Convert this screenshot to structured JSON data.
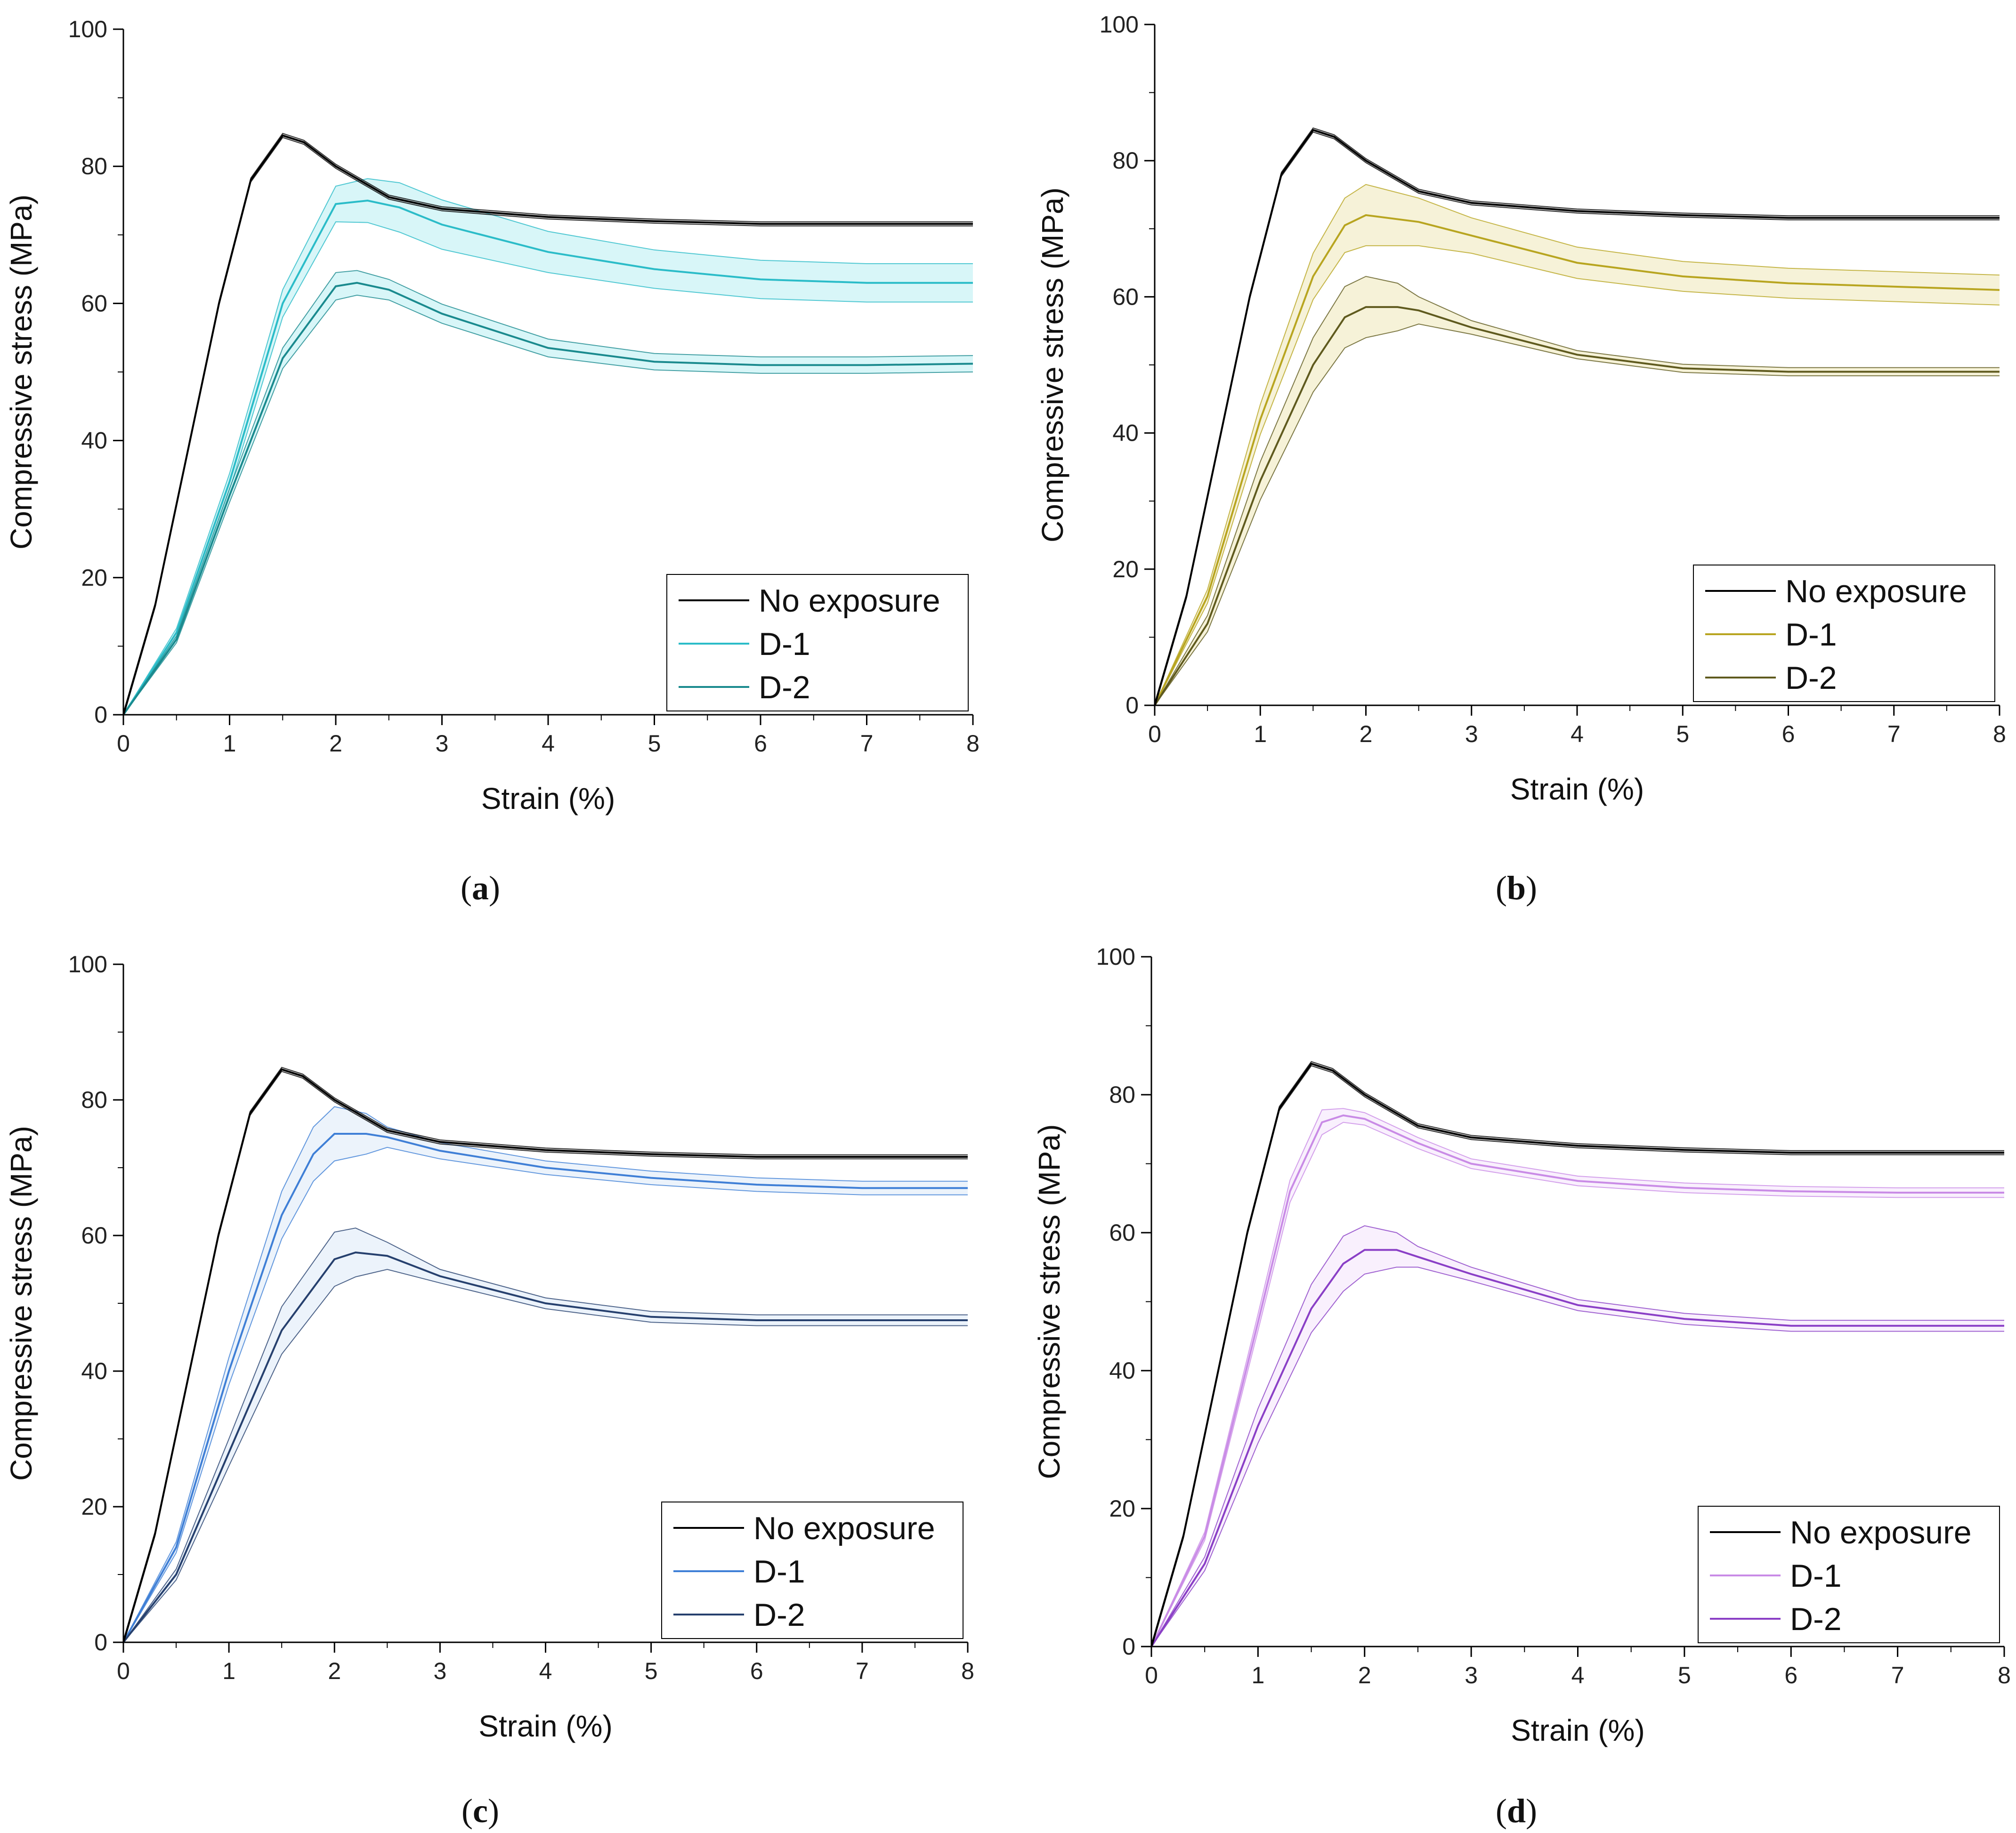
{
  "figure": {
    "panels": [
      {
        "id": "a",
        "caption_open": "(",
        "caption_letter": "a",
        "caption_close": ")"
      },
      {
        "id": "b",
        "caption_open": "(",
        "caption_letter": "b",
        "caption_close": ")"
      },
      {
        "id": "c",
        "caption_open": "(",
        "caption_letter": "c",
        "caption_close": ")"
      },
      {
        "id": "d",
        "caption_open": "(",
        "caption_letter": "d",
        "caption_close": ")"
      }
    ]
  },
  "chart_data": [
    {
      "panel": "a",
      "type": "line",
      "title": "",
      "xlabel": "Strain (%)",
      "ylabel": "Compressive stress (MPa)",
      "xlim": [
        0,
        8
      ],
      "ylim": [
        0,
        100
      ],
      "xticks": [
        "0",
        "1",
        "2",
        "3",
        "4",
        "5",
        "6",
        "7",
        "8"
      ],
      "yticks": [
        "0",
        "20",
        "40",
        "60",
        "80",
        "100"
      ],
      "grid": false,
      "legend_position": "bottom-right",
      "series": [
        {
          "name": "No exposure",
          "color": "#000000",
          "band_color": "#888888",
          "x": [
            0,
            0.3,
            0.6,
            0.9,
            1.2,
            1.5,
            1.7,
            2.0,
            2.5,
            3.0,
            4.0,
            5.0,
            6.0,
            7.0,
            8.0
          ],
          "y": [
            0,
            16,
            38,
            60,
            78,
            84.5,
            83.5,
            80,
            75.5,
            73.8,
            72.6,
            72,
            71.6,
            71.6,
            71.6
          ],
          "band": [
            0.3
          ]
        },
        {
          "name": "D-1",
          "color": "#2bbcc8",
          "band_color": "#b8eef3",
          "x": [
            0,
            0.5,
            1.0,
            1.5,
            2.0,
            2.3,
            2.6,
            3.0,
            4.0,
            5.0,
            6.0,
            7.0,
            8.0
          ],
          "y": [
            0,
            12,
            34,
            60,
            74.5,
            75,
            74,
            71.5,
            67.5,
            65,
            63.5,
            63,
            63
          ],
          "band": [
            0,
            0.6,
            1.2,
            2.0,
            2.6,
            3.2,
            3.6,
            3.6,
            3.0,
            2.8,
            2.8,
            2.8,
            2.8
          ]
        },
        {
          "name": "D-2",
          "color": "#1a8a8e",
          "band_color": "#b8eef3",
          "x": [
            0,
            0.5,
            1.0,
            1.5,
            2.0,
            2.2,
            2.5,
            3.0,
            4.0,
            5.0,
            6.0,
            7.0,
            8.0
          ],
          "y": [
            0,
            11,
            32,
            52,
            62.5,
            63,
            62,
            58.5,
            53.5,
            51.5,
            51,
            51,
            51.2
          ],
          "band": [
            0,
            0.5,
            1.0,
            1.5,
            2.0,
            1.8,
            1.5,
            1.4,
            1.3,
            1.2,
            1.2,
            1.2,
            1.2
          ]
        }
      ]
    },
    {
      "panel": "b",
      "type": "line",
      "title": "",
      "xlabel": "Strain (%)",
      "ylabel": "Compressive stress (MPa)",
      "xlim": [
        0,
        8
      ],
      "ylim": [
        0,
        100
      ],
      "xticks": [
        "0",
        "1",
        "2",
        "3",
        "4",
        "5",
        "6",
        "7",
        "8"
      ],
      "yticks": [
        "0",
        "20",
        "40",
        "60",
        "80",
        "100"
      ],
      "grid": false,
      "legend_position": "bottom-right",
      "series": [
        {
          "name": "No exposure",
          "color": "#000000",
          "band_color": "#888888",
          "x": [
            0,
            0.3,
            0.6,
            0.9,
            1.2,
            1.5,
            1.7,
            2.0,
            2.5,
            3.0,
            4.0,
            5.0,
            6.0,
            7.0,
            8.0
          ],
          "y": [
            0,
            16,
            38,
            60,
            78,
            84.5,
            83.5,
            80,
            75.5,
            73.8,
            72.6,
            72,
            71.6,
            71.6,
            71.6
          ],
          "band": [
            0.3
          ]
        },
        {
          "name": "D-1",
          "color": "#b8a520",
          "band_color": "#efe8b8",
          "x": [
            0,
            0.5,
            1.0,
            1.5,
            1.8,
            2.0,
            2.5,
            3.0,
            4.0,
            5.0,
            6.0,
            7.0,
            8.0
          ],
          "y": [
            0,
            16,
            42,
            63,
            70.5,
            72,
            71,
            69,
            65,
            63,
            62,
            61.5,
            61
          ],
          "band": [
            0,
            1.0,
            2.2,
            3.4,
            4.0,
            4.5,
            3.5,
            2.6,
            2.3,
            2.2,
            2.2,
            2.2,
            2.2
          ]
        },
        {
          "name": "D-2",
          "color": "#5f5a1e",
          "band_color": "#efe8b8",
          "x": [
            0,
            0.5,
            1.0,
            1.5,
            1.8,
            2.0,
            2.3,
            2.5,
            3.0,
            4.0,
            5.0,
            6.0,
            7.0,
            8.0
          ],
          "y": [
            0,
            12,
            33,
            50,
            57,
            58.5,
            58.5,
            58,
            55.5,
            51.5,
            49.5,
            49,
            49,
            49
          ],
          "band": [
            0,
            1.2,
            2.8,
            4.0,
            4.5,
            4.5,
            3.5,
            2.0,
            1.0,
            0.6,
            0.6,
            0.6,
            0.6,
            0.6
          ]
        }
      ]
    },
    {
      "panel": "c",
      "type": "line",
      "title": "",
      "xlabel": "Strain (%)",
      "ylabel": "Compressive stress (MPa)",
      "xlim": [
        0,
        8
      ],
      "ylim": [
        0,
        100
      ],
      "xticks": [
        "0",
        "1",
        "2",
        "3",
        "4",
        "5",
        "6",
        "7",
        "8"
      ],
      "yticks": [
        "0",
        "20",
        "40",
        "60",
        "80",
        "100"
      ],
      "grid": false,
      "legend_position": "bottom-right",
      "series": [
        {
          "name": "No exposure",
          "color": "#000000",
          "band_color": "#888888",
          "x": [
            0,
            0.3,
            0.6,
            0.9,
            1.2,
            1.5,
            1.7,
            2.0,
            2.5,
            3.0,
            4.0,
            5.0,
            6.0,
            7.0,
            8.0
          ],
          "y": [
            0,
            16,
            38,
            60,
            78,
            84.5,
            83.5,
            80,
            75.5,
            73.8,
            72.6,
            72,
            71.6,
            71.6,
            71.6
          ],
          "band": [
            0.3
          ]
        },
        {
          "name": "D-1",
          "color": "#3f7fd6",
          "band_color": "#dde9f8",
          "x": [
            0,
            0.5,
            1.0,
            1.5,
            1.8,
            2.0,
            2.3,
            2.5,
            3.0,
            4.0,
            5.0,
            6.0,
            7.0,
            8.0
          ],
          "y": [
            0,
            14,
            40,
            63,
            72,
            75,
            75,
            74.5,
            72.5,
            70,
            68.5,
            67.5,
            67,
            67
          ],
          "band": [
            0,
            0.8,
            2.0,
            3.5,
            4.0,
            4.0,
            3.0,
            1.5,
            1.2,
            1.0,
            1.0,
            1.0,
            1.0,
            1.0
          ]
        },
        {
          "name": "D-2",
          "color": "#26406e",
          "band_color": "#dde9f8",
          "x": [
            0,
            0.5,
            1.0,
            1.5,
            2.0,
            2.2,
            2.5,
            3.0,
            4.0,
            5.0,
            6.0,
            7.0,
            8.0
          ],
          "y": [
            0,
            10,
            28,
            46,
            56.5,
            57.5,
            57,
            54,
            50,
            48,
            47.5,
            47.5,
            47.5
          ],
          "band": [
            0,
            0.8,
            2.0,
            3.5,
            4.0,
            3.6,
            2.0,
            1.0,
            0.8,
            0.8,
            0.8,
            0.8,
            0.8
          ]
        }
      ]
    },
    {
      "panel": "d",
      "type": "line",
      "title": "",
      "xlabel": "Strain (%)",
      "ylabel": "Compressive stress (MPa)",
      "xlim": [
        0,
        8
      ],
      "ylim": [
        0,
        100
      ],
      "xticks": [
        "0",
        "1",
        "2",
        "3",
        "4",
        "5",
        "6",
        "7",
        "8"
      ],
      "yticks": [
        "0",
        "20",
        "40",
        "60",
        "80",
        "100"
      ],
      "grid": false,
      "legend_position": "bottom-right",
      "series": [
        {
          "name": "No exposure",
          "color": "#000000",
          "band_color": "#888888",
          "x": [
            0,
            0.3,
            0.6,
            0.9,
            1.2,
            1.5,
            1.7,
            2.0,
            2.5,
            3.0,
            4.0,
            5.0,
            6.0,
            7.0,
            8.0
          ],
          "y": [
            0,
            16,
            38,
            60,
            78,
            84.5,
            83.5,
            80,
            75.5,
            73.8,
            72.6,
            72,
            71.6,
            71.6,
            71.6
          ],
          "band": [
            0.3
          ]
        },
        {
          "name": "D-1",
          "color": "#c98be6",
          "band_color": "#f4e3fb",
          "x": [
            0,
            0.5,
            1.0,
            1.3,
            1.6,
            1.8,
            2.0,
            2.5,
            3.0,
            4.0,
            5.0,
            6.0,
            7.0,
            8.0
          ],
          "y": [
            0,
            16,
            47,
            66,
            76,
            77,
            76.5,
            73,
            70,
            67.5,
            66.5,
            66,
            65.8,
            65.8
          ],
          "band": [
            0,
            0.6,
            1.2,
            1.6,
            1.8,
            1.0,
            0.9,
            0.8,
            0.7,
            0.7,
            0.7,
            0.7,
            0.7,
            0.7
          ]
        },
        {
          "name": "D-2",
          "color": "#8a3fc6",
          "band_color": "#f4e3fb",
          "x": [
            0,
            0.5,
            1.0,
            1.5,
            1.8,
            2.0,
            2.3,
            2.5,
            3.0,
            4.0,
            5.0,
            6.0,
            7.0,
            8.0
          ],
          "y": [
            0,
            12,
            32,
            49,
            55.5,
            57.5,
            57.5,
            56.5,
            54,
            49.5,
            47.5,
            46.5,
            46.5,
            46.5
          ],
          "band": [
            0,
            1.0,
            2.5,
            3.5,
            4.0,
            3.5,
            2.5,
            1.5,
            1.0,
            0.8,
            0.8,
            0.8,
            0.8,
            0.8
          ]
        }
      ]
    }
  ]
}
